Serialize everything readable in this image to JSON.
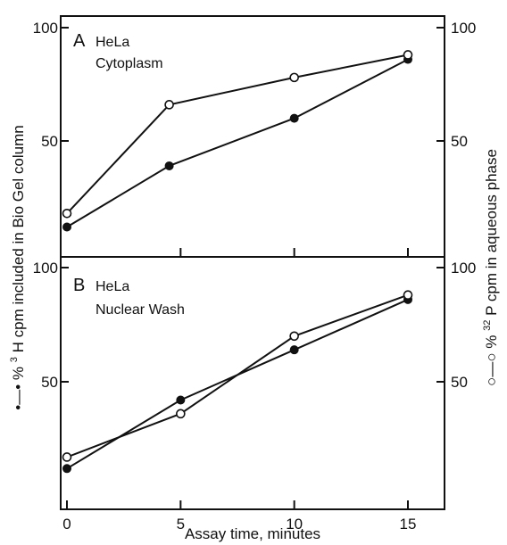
{
  "chart_data": [
    {
      "type": "line",
      "panel_label": "A",
      "title_line1": "HeLa",
      "title_line2": "Cytoplasm",
      "x": [
        0,
        4.5,
        10,
        15
      ],
      "series": [
        {
          "marker": "filled",
          "axis": "left",
          "values": [
            12,
            39,
            60,
            86
          ]
        },
        {
          "marker": "open",
          "axis": "right",
          "values": [
            18,
            66,
            78,
            88
          ]
        }
      ],
      "xlim": [
        0,
        16.5
      ],
      "ylim_left": [
        0,
        100
      ],
      "ylim_right": [
        0,
        100
      ],
      "yticks_left": [
        50,
        100
      ],
      "ytick_labels_left": [
        "50",
        "100"
      ],
      "yticks_right": [
        50,
        100
      ],
      "ytick_labels_right": [
        "50",
        "100"
      ],
      "xticks": [
        5,
        10,
        15
      ]
    },
    {
      "type": "line",
      "panel_label": "B",
      "title_line1": "HeLa",
      "title_line2": "Nuclear Wash",
      "x": [
        0,
        5,
        10,
        15
      ],
      "series": [
        {
          "marker": "filled",
          "axis": "left",
          "values": [
            12,
            42,
            64,
            86
          ]
        },
        {
          "marker": "open",
          "axis": "right",
          "values": [
            17,
            36,
            70,
            88
          ]
        }
      ],
      "xlim": [
        0,
        16.5
      ],
      "ylim_left": [
        0,
        100
      ],
      "ylim_right": [
        0,
        100
      ],
      "yticks_left": [
        50,
        100
      ],
      "ytick_labels_left": [
        "50",
        "100"
      ],
      "yticks_right": [
        50,
        100
      ],
      "ytick_labels_right": [
        "50",
        "100"
      ],
      "xticks": [
        0,
        5,
        10,
        15
      ],
      "xtick_labels": [
        "0",
        "5",
        "10",
        "15"
      ]
    }
  ],
  "axes": {
    "xlabel": "Assay time, minutes",
    "ylabel_left_pre": "•—• %",
    "ylabel_left_sup": "3",
    "ylabel_left_post": "H cpm included in Bio Gel column",
    "ylabel_right_pre": "○—○ %",
    "ylabel_right_sup": "32",
    "ylabel_right_post": "P cpm in aqueous phase"
  }
}
